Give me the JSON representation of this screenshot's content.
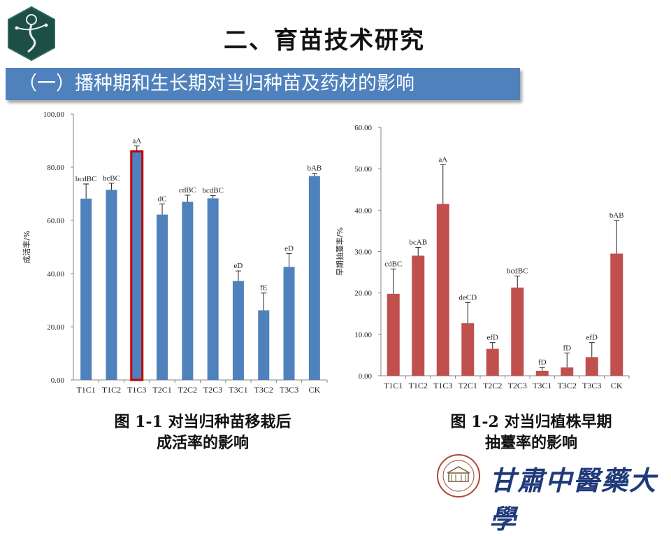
{
  "slide": {
    "title": "二、育苗技术研究",
    "section": "（一）播种期和生长期对当归种苗及药材的影响",
    "university": "甘肅中醫藥大學"
  },
  "colors": {
    "banner": "#4f81bd",
    "bar_blue": "#4f81bd",
    "bar_red": "#c0504d",
    "highlight_border": "#c00000"
  },
  "chart_data": [
    {
      "type": "bar",
      "caption_line1": "图 1-1 对当归种苗移栽后",
      "caption_line2": "成活率的影响",
      "ylabel": "成活率/%",
      "ylim": [
        0,
        100
      ],
      "yticks": [
        "0.00",
        "20.00",
        "40.00",
        "60.00",
        "80.00",
        "100.00"
      ],
      "categories": [
        "T1C1",
        "T1C2",
        "T1C3",
        "T2C1",
        "T2C2",
        "T2C3",
        "T3C1",
        "T3C2",
        "T3C3",
        "CK"
      ],
      "values": [
        68.2,
        71.5,
        86.0,
        62.2,
        67.0,
        68.3,
        37.2,
        26.2,
        42.5,
        76.7
      ],
      "errors": [
        5.5,
        2.5,
        2.0,
        4.0,
        2.5,
        1.0,
        3.8,
        6.5,
        5.0,
        1.0
      ],
      "labels": [
        "bcdBC",
        "bcBC",
        "aA",
        "dC",
        "cdBC",
        "bcdBC",
        "eD",
        "fE",
        "eD",
        "bAB"
      ],
      "highlight_index": 2,
      "color": "#4f81bd"
    },
    {
      "type": "bar",
      "caption_line1": "图 1-2 对当归植株早期",
      "caption_line2": "抽薹率的影响",
      "ylabel": "早期抽薹率/%",
      "ylim": [
        0,
        60
      ],
      "yticks": [
        "0.00",
        "10.00",
        "20.00",
        "30.00",
        "40.00",
        "50.00",
        "60.00"
      ],
      "categories": [
        "T1C1",
        "T1C2",
        "T1C3",
        "T2C1",
        "T2C2",
        "T2C3",
        "T3C1",
        "T3C2",
        "T3C3",
        "CK"
      ],
      "values": [
        19.8,
        29.0,
        41.5,
        12.7,
        6.5,
        21.3,
        1.2,
        2.0,
        4.5,
        29.5
      ],
      "errors": [
        6.0,
        2.0,
        9.5,
        5.0,
        1.5,
        2.8,
        0.8,
        3.5,
        3.5,
        8.0
      ],
      "labels": [
        "cdBC",
        "bcAB",
        "aA",
        "deCD",
        "efD",
        "bcdBC",
        "fD",
        "fD",
        "efD",
        "bAB"
      ],
      "highlight_index": -1,
      "color": "#c0504d"
    }
  ]
}
